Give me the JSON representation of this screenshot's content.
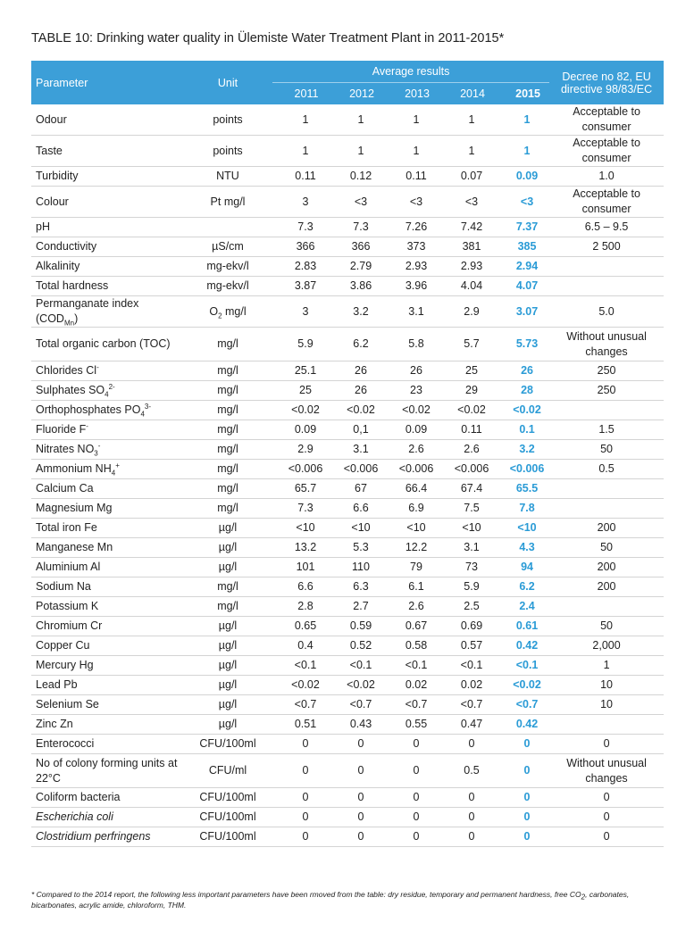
{
  "title": "TABLE 10: Drinking water quality in Ülemiste Water Treatment Plant in 2011-2015*",
  "header": {
    "parameter": "Parameter",
    "unit": "Unit",
    "average": "Average results",
    "years": [
      "2011",
      "2012",
      "2013",
      "2014",
      "2015"
    ],
    "decree": "Decree no 82, EU directive 98/83/EC"
  },
  "rows": [
    {
      "parameter": "Odour",
      "unit": "points",
      "values": [
        "1",
        "1",
        "1",
        "1",
        "1"
      ],
      "decree": "Acceptable to consumer"
    },
    {
      "parameter": "Taste",
      "unit": "points",
      "values": [
        "1",
        "1",
        "1",
        "1",
        "1"
      ],
      "decree": "Acceptable to consumer"
    },
    {
      "parameter": "Turbidity",
      "unit": "NTU",
      "values": [
        "0.11",
        "0.12",
        "0.11",
        "0.07",
        "0.09"
      ],
      "decree": "1.0"
    },
    {
      "parameter": "Colour",
      "unit": "Pt mg/l",
      "values": [
        "3",
        "<3",
        "<3",
        "<3",
        "<3"
      ],
      "decree": "Acceptable to consumer"
    },
    {
      "parameter": "pH",
      "values": [
        "7.3",
        "7.3",
        "7.26",
        "7.42",
        "7.37"
      ],
      "decree": "6.5 – 9.5"
    },
    {
      "parameter": "Conductivity",
      "unit": "µS/cm",
      "values": [
        "366",
        "366",
        "373",
        "381",
        "385"
      ],
      "decree": "2 500"
    },
    {
      "parameter": "Alkalinity",
      "unit": "mg-ekv/l",
      "values": [
        "2.83",
        "2.79",
        "2.93",
        "2.93",
        "2.94"
      ]
    },
    {
      "parameter": "Total hardness",
      "unit": "mg-ekv/l",
      "values": [
        "3.87",
        "3.86",
        "3.96",
        "4.04",
        "4.07"
      ]
    },
    {
      "parameter": [
        "Permanganate index (COD",
        {
          "sub": "Mn"
        },
        ")"
      ],
      "unit": [
        "O",
        {
          "sub": "2"
        },
        " mg/l"
      ],
      "values": [
        "3",
        "3.2",
        "3.1",
        "2.9",
        "3.07"
      ],
      "decree": "5.0"
    },
    {
      "parameter": "Total organic carbon (TOC)",
      "unit": "mg/l",
      "values": [
        "5.9",
        "6.2",
        "5.8",
        "5.7",
        "5.73"
      ],
      "decree": "Without unusual changes"
    },
    {
      "parameter": [
        "Chlorides Cl",
        {
          "sup": "-"
        }
      ],
      "unit": "mg/l",
      "values": [
        "25.1",
        "26",
        "26",
        "25",
        "26"
      ],
      "decree": "250"
    },
    {
      "parameter": [
        "Sulphates SO",
        {
          "sub": "4"
        },
        {
          "sup": "2-"
        }
      ],
      "unit": "mg/l",
      "values": [
        "25",
        "26",
        "23",
        "29",
        "28"
      ],
      "decree": "250"
    },
    {
      "parameter": [
        "Orthophosphates PO",
        {
          "sub": "4"
        },
        {
          "sup": "3-"
        }
      ],
      "unit": "mg/l",
      "values": [
        "<0.02",
        "<0.02",
        "<0.02",
        "<0.02",
        "<0.02"
      ]
    },
    {
      "parameter": [
        "Fluoride F",
        {
          "sup": "-"
        }
      ],
      "unit": "mg/l",
      "values": [
        "0.09",
        "0,1",
        "0.09",
        "0.11",
        "0.1"
      ],
      "decree": "1.5"
    },
    {
      "parameter": [
        "Nitrates NO",
        {
          "sub": "3"
        },
        {
          "sup": "-"
        }
      ],
      "unit": "mg/l",
      "values": [
        "2.9",
        "3.1",
        "2.6",
        "2.6",
        "3.2"
      ],
      "decree": "50"
    },
    {
      "parameter": [
        "Ammonium NH",
        {
          "sub": "4"
        },
        {
          "sup": "+"
        }
      ],
      "unit": "mg/l",
      "values": [
        "<0.006",
        "<0.006",
        "<0.006",
        "<0.006",
        "<0.006"
      ],
      "decree": "0.5"
    },
    {
      "parameter": "Calcium Ca",
      "unit": "mg/l",
      "values": [
        "65.7",
        "67",
        "66.4",
        "67.4",
        "65.5"
      ]
    },
    {
      "parameter": "Magnesium Mg",
      "unit": "mg/l",
      "values": [
        "7.3",
        "6.6",
        "6.9",
        "7.5",
        "7.8"
      ]
    },
    {
      "parameter": "Total iron Fe",
      "unit": "µg/l",
      "values": [
        "<10",
        "<10",
        "<10",
        "<10",
        "<10"
      ],
      "decree": "200"
    },
    {
      "parameter": "Manganese Mn",
      "unit": "µg/l",
      "values": [
        "13.2",
        "5.3",
        "12.2",
        "3.1",
        "4.3"
      ],
      "decree": "50"
    },
    {
      "parameter": "Aluminium Al",
      "unit": "µg/l",
      "values": [
        "101",
        "110",
        "79",
        "73",
        "94"
      ],
      "decree": "200"
    },
    {
      "parameter": "Sodium Na",
      "unit": "mg/l",
      "values": [
        "6.6",
        "6.3",
        "6.1",
        "5.9",
        "6.2"
      ],
      "decree": "200"
    },
    {
      "parameter": "Potassium K",
      "unit": "mg/l",
      "values": [
        "2.8",
        "2.7",
        "2.6",
        "2.5",
        "2.4"
      ]
    },
    {
      "parameter": "Chromium Cr",
      "unit": "µg/l",
      "values": [
        "0.65",
        "0.59",
        "0.67",
        "0.69",
        "0.61"
      ],
      "decree": "50"
    },
    {
      "parameter": "Copper Cu",
      "unit": "µg/l",
      "values": [
        "0.4",
        "0.52",
        "0.58",
        "0.57",
        "0.42"
      ],
      "decree": "2,000"
    },
    {
      "parameter": "Mercury Hg",
      "unit": "µg/l",
      "values": [
        "<0.1",
        "<0.1",
        "<0.1",
        "<0.1",
        "<0.1"
      ],
      "decree": "1"
    },
    {
      "parameter": "Lead Pb",
      "unit": "µg/l",
      "values": [
        "<0.02",
        "<0.02",
        "0.02",
        "0.02",
        "<0.02"
      ],
      "decree": "10"
    },
    {
      "parameter": "Selenium Se",
      "unit": "µg/l",
      "values": [
        "<0.7",
        "<0.7",
        "<0.7",
        "<0.7",
        "<0.7"
      ],
      "decree": "10"
    },
    {
      "parameter": "Zinc Zn",
      "unit": "µg/l",
      "values": [
        "0.51",
        "0.43",
        "0.55",
        "0.47",
        "0.42"
      ]
    },
    {
      "parameter": "Enterococci",
      "unit": "CFU/100ml",
      "values": [
        "0",
        "0",
        "0",
        "0",
        "0"
      ],
      "decree": "0"
    },
    {
      "parameter": "No of colony forming units at 22°C",
      "unit": "CFU/ml",
      "values": [
        "0",
        "0",
        "0",
        "0.5",
        "0"
      ],
      "decree": "Without unusual changes"
    },
    {
      "parameter": "Coliform bacteria",
      "unit": "CFU/100ml",
      "values": [
        "0",
        "0",
        "0",
        "0",
        "0"
      ],
      "decree": "0"
    },
    {
      "parameter": [
        {
          "italic": "Escherichia coli"
        }
      ],
      "unit": "CFU/100ml",
      "values": [
        "0",
        "0",
        "0",
        "0",
        "0"
      ],
      "decree": "0"
    },
    {
      "parameter": [
        {
          "italic": "Clostridium perfringens"
        }
      ],
      "unit": "CFU/100ml",
      "values": [
        "0",
        "0",
        "0",
        "0",
        "0"
      ],
      "decree": "0"
    }
  ],
  "footnote": [
    "* Compared to the 2014 report, the following less important parameters have been rmoved from the table: dry residue, temporary and permanent hardness, free CO",
    {
      "sub": "2"
    },
    ", carbonates, bicarbonates, acrylic amide, chloroform, THM."
  ]
}
